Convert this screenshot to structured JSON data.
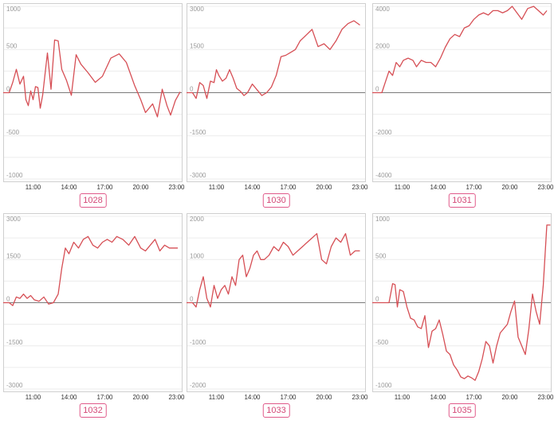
{
  "theme": {
    "series_color": "#d64f55",
    "badge_color": "#e05a8a"
  },
  "chart_data": [
    {
      "type": "line",
      "title": "1028",
      "ylim": [
        -1000,
        1000
      ],
      "yticks": [
        1000,
        500,
        0,
        -500,
        -1000
      ],
      "xlim": [
        8.5,
        23.5
      ],
      "xticks": [
        "11:00",
        "14:00",
        "17:00",
        "20:00",
        "23:00"
      ],
      "x": [
        8.5,
        9.0,
        9.3,
        9.6,
        9.9,
        10.2,
        10.4,
        10.6,
        10.8,
        11.0,
        11.2,
        11.4,
        11.6,
        11.8,
        12.2,
        12.5,
        12.8,
        13.1,
        13.4,
        13.8,
        14.2,
        14.6,
        15.0,
        15.6,
        16.2,
        16.8,
        17.5,
        18.2,
        18.8,
        19.5,
        20.0,
        20.4,
        21.0,
        21.4,
        21.8,
        22.2,
        22.5,
        22.9,
        23.3
      ],
      "values": [
        0,
        0,
        120,
        270,
        100,
        190,
        -80,
        -150,
        20,
        -80,
        70,
        60,
        -180,
        -30,
        460,
        40,
        610,
        600,
        270,
        140,
        -30,
        440,
        330,
        230,
        120,
        190,
        400,
        450,
        350,
        80,
        -80,
        -230,
        -130,
        -280,
        40,
        -150,
        -260,
        -90,
        10
      ]
    },
    {
      "type": "line",
      "title": "1030",
      "ylim": [
        -3000,
        3000
      ],
      "yticks": [
        3000,
        1500,
        0,
        -1500,
        -3000
      ],
      "xlim": [
        8.5,
        23.5
      ],
      "xticks": [
        "11:00",
        "14:00",
        "17:00",
        "20:00",
        "23:00"
      ],
      "x": [
        8.5,
        9.0,
        9.3,
        9.6,
        9.9,
        10.2,
        10.5,
        10.8,
        11.0,
        11.2,
        11.5,
        11.8,
        12.1,
        12.4,
        12.7,
        13.0,
        13.3,
        13.6,
        14.0,
        14.4,
        14.8,
        15.2,
        15.6,
        16.0,
        16.4,
        16.8,
        17.2,
        17.6,
        18.0,
        18.5,
        19.0,
        19.5,
        20.0,
        20.5,
        21.0,
        21.5,
        22.0,
        22.5,
        23.0
      ],
      "values": [
        0,
        0,
        -200,
        350,
        250,
        -200,
        400,
        350,
        800,
        600,
        400,
        500,
        800,
        500,
        150,
        50,
        -100,
        0,
        300,
        100,
        -100,
        0,
        200,
        600,
        1250,
        1300,
        1400,
        1500,
        1800,
        2000,
        2200,
        1600,
        1700,
        1500,
        1800,
        2200,
        2400,
        2500,
        2350
      ]
    },
    {
      "type": "line",
      "title": "1031",
      "ylim": [
        -4000,
        4000
      ],
      "yticks": [
        4000,
        2000,
        0,
        -2000,
        -4000
      ],
      "xlim": [
        8.5,
        23.5
      ],
      "xticks": [
        "11:00",
        "14:00",
        "17:00",
        "20:00",
        "23:00"
      ],
      "x": [
        8.5,
        9.0,
        9.3,
        9.6,
        9.9,
        10.2,
        10.5,
        10.8,
        11.1,
        11.5,
        11.9,
        12.2,
        12.6,
        13.0,
        13.4,
        13.8,
        14.2,
        14.6,
        15.0,
        15.4,
        15.8,
        16.2,
        16.6,
        17.0,
        17.4,
        17.8,
        18.2,
        18.6,
        19.0,
        19.4,
        19.8,
        20.2,
        20.6,
        21.0,
        21.5,
        22.0,
        22.4,
        22.8,
        23.1
      ],
      "values": [
        0,
        0,
        0,
        500,
        1000,
        800,
        1400,
        1200,
        1500,
        1600,
        1500,
        1200,
        1500,
        1400,
        1400,
        1200,
        1600,
        2100,
        2500,
        2700,
        2600,
        3000,
        3100,
        3400,
        3600,
        3700,
        3600,
        3800,
        3800,
        3700,
        3800,
        4000,
        3700,
        3400,
        3900,
        4000,
        3800,
        3600,
        3800
      ]
    },
    {
      "type": "line",
      "title": "1032",
      "ylim": [
        -3000,
        3000
      ],
      "yticks": [
        3000,
        1500,
        0,
        -1500,
        -3000
      ],
      "xlim": [
        8.5,
        23.5
      ],
      "xticks": [
        "11:00",
        "14:00",
        "17:00",
        "20:00",
        "23:00"
      ],
      "x": [
        8.5,
        9.0,
        9.3,
        9.6,
        9.9,
        10.2,
        10.5,
        10.8,
        11.1,
        11.5,
        11.9,
        12.3,
        12.7,
        13.1,
        13.4,
        13.7,
        14.0,
        14.4,
        14.8,
        15.2,
        15.6,
        16.0,
        16.4,
        16.8,
        17.2,
        17.6,
        18.0,
        18.5,
        19.0,
        19.5,
        20.0,
        20.4,
        20.8,
        21.2,
        21.6,
        22.0,
        22.4,
        22.8,
        23.1
      ],
      "values": [
        0,
        0,
        -100,
        200,
        150,
        300,
        150,
        250,
        100,
        50,
        200,
        -50,
        0,
        300,
        1200,
        1900,
        1700,
        2100,
        1900,
        2200,
        2300,
        2000,
        1900,
        2100,
        2200,
        2100,
        2300,
        2200,
        2000,
        2300,
        1900,
        1800,
        2000,
        2200,
        1800,
        2000,
        1900,
        1900,
        1900
      ]
    },
    {
      "type": "line",
      "title": "1033",
      "ylim": [
        -2000,
        2000
      ],
      "yticks": [
        2000,
        1000,
        0,
        -1000,
        -2000
      ],
      "xlim": [
        8.5,
        23.5
      ],
      "xticks": [
        "11:00",
        "14:00",
        "17:00",
        "20:00",
        "23:00"
      ],
      "x": [
        8.5,
        9.0,
        9.3,
        9.6,
        9.9,
        10.2,
        10.5,
        10.8,
        11.1,
        11.4,
        11.7,
        12.0,
        12.3,
        12.6,
        12.9,
        13.2,
        13.5,
        13.8,
        14.1,
        14.4,
        14.7,
        15.0,
        15.4,
        15.8,
        16.2,
        16.6,
        17.0,
        17.4,
        17.8,
        18.2,
        18.6,
        19.0,
        19.4,
        19.8,
        20.2,
        20.6,
        21.0,
        21.4,
        21.8,
        22.2,
        22.6,
        23.0
      ],
      "values": [
        0,
        0,
        -100,
        300,
        600,
        100,
        -100,
        400,
        100,
        300,
        400,
        200,
        600,
        400,
        1000,
        1100,
        600,
        800,
        1100,
        1200,
        1000,
        1000,
        1100,
        1300,
        1200,
        1400,
        1300,
        1100,
        1200,
        1300,
        1400,
        1500,
        1600,
        1000,
        900,
        1300,
        1500,
        1400,
        1600,
        1100,
        1200,
        1200
      ]
    },
    {
      "type": "line",
      "title": "1035",
      "ylim": [
        -1000,
        1000
      ],
      "yticks": [
        1000,
        500,
        0,
        -500,
        -1000
      ],
      "xlim": [
        8.5,
        23.5
      ],
      "xticks": [
        "11:00",
        "14:00",
        "17:00",
        "20:00",
        "23:00"
      ],
      "x": [
        8.5,
        9.0,
        9.3,
        9.6,
        9.9,
        10.2,
        10.4,
        10.6,
        10.8,
        11.1,
        11.4,
        11.7,
        12.0,
        12.3,
        12.6,
        12.9,
        13.2,
        13.5,
        13.8,
        14.1,
        14.4,
        14.7,
        15.0,
        15.3,
        15.6,
        15.9,
        16.2,
        16.5,
        16.8,
        17.1,
        17.4,
        17.7,
        18.0,
        18.3,
        18.6,
        18.9,
        19.2,
        19.5,
        19.8,
        20.1,
        20.4,
        20.7,
        21.0,
        21.3,
        21.6,
        21.9,
        22.2,
        22.5,
        22.8,
        23.1,
        23.4
      ],
      "values": [
        0,
        0,
        0,
        0,
        0,
        220,
        210,
        -50,
        150,
        130,
        -50,
        -180,
        -200,
        -280,
        -300,
        -150,
        -520,
        -330,
        -300,
        -200,
        -370,
        -560,
        -600,
        -720,
        -780,
        -860,
        -880,
        -850,
        -870,
        -900,
        -800,
        -650,
        -450,
        -500,
        -700,
        -500,
        -350,
        -300,
        -250,
        -100,
        20,
        -400,
        -500,
        -600,
        -300,
        100,
        -100,
        -250,
        200,
        900,
        900
      ]
    }
  ]
}
